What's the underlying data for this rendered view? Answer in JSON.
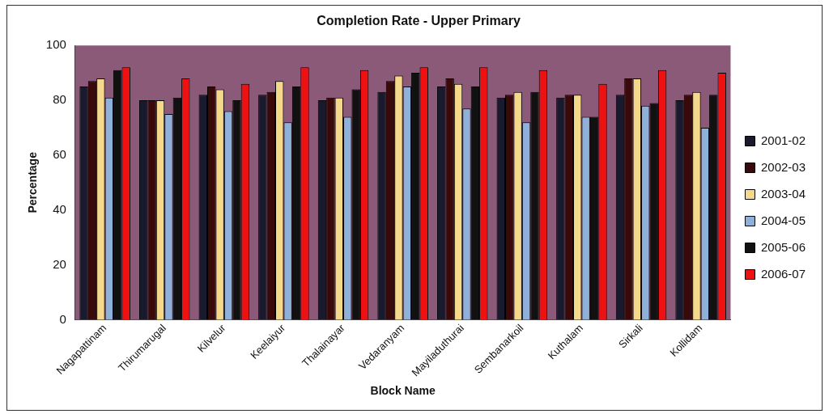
{
  "chart_data": {
    "type": "bar",
    "title": "Completion Rate - Upper Primary",
    "xlabel": "Block Name",
    "ylabel": "Percentage",
    "categories": [
      "Nagapattinam",
      "Thirumarugal",
      "Kilvelur",
      "Keelaiyur",
      "Thalainayar",
      "Vedaranyam",
      "Mayiladuthurai",
      "Sembanarkoil",
      "Kuthalam",
      "Sirkali",
      "Kollidam"
    ],
    "series": [
      {
        "name": "2001-02",
        "color": "#1a1a2e",
        "values": [
          85,
          80,
          82,
          82,
          80,
          83,
          85,
          81,
          81,
          82,
          80
        ]
      },
      {
        "name": "2002-03",
        "color": "#3a0a0a",
        "values": [
          87,
          80,
          85,
          83,
          81,
          87,
          88,
          82,
          82,
          88,
          82
        ]
      },
      {
        "name": "2003-04",
        "color": "#f5d98a",
        "values": [
          88,
          80,
          84,
          87,
          81,
          89,
          86,
          83,
          82,
          88,
          83
        ]
      },
      {
        "name": "2004-05",
        "color": "#8fb0d8",
        "values": [
          81,
          75,
          76,
          72,
          74,
          85,
          77,
          72,
          74,
          78,
          70
        ]
      },
      {
        "name": "2005-06",
        "color": "#111111",
        "values": [
          91,
          81,
          80,
          85,
          84,
          90,
          85,
          83,
          74,
          79,
          82
        ]
      },
      {
        "name": "2006-07",
        "color": "#ee1111",
        "values": [
          92,
          88,
          86,
          92,
          91,
          92,
          92,
          91,
          86,
          91,
          90
        ]
      }
    ],
    "ylim": [
      0,
      100
    ],
    "yticks": [
      0,
      20,
      40,
      60,
      80,
      100
    ],
    "grid": false,
    "legend": "right"
  }
}
